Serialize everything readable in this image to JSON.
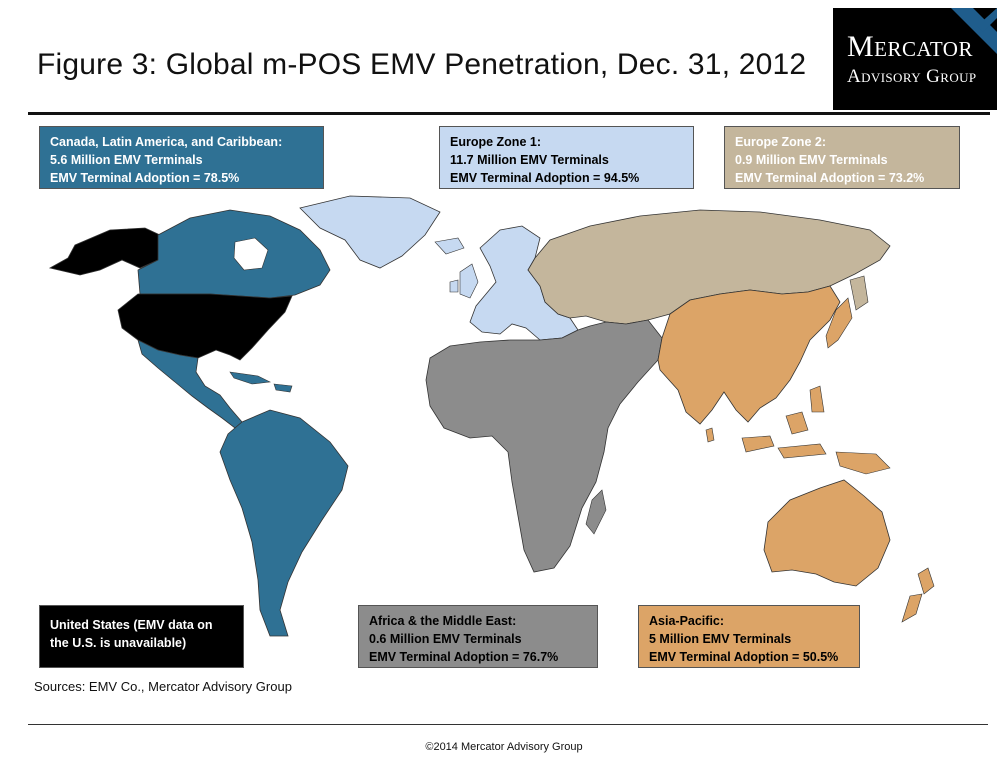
{
  "title": "Figure 3: Global m-POS EMV Penetration, Dec. 31, 2012",
  "logo": {
    "line1": "Mercator",
    "line2": "Advisory Group"
  },
  "colors": {
    "canada_latam": "#2f7194",
    "europe1": "#c6d9f1",
    "europe2": "#c4b69c",
    "africa_me": "#8c8c8c",
    "asia_pacific": "#dca467",
    "us": "#000000"
  },
  "regions": {
    "canada_latam": {
      "line1": "Canada, Latin America, and Caribbean:",
      "line2": " 5.6 Million EMV Terminals",
      "line3": "EMV Terminal Adoption = 78.5%"
    },
    "europe1": {
      "line1": "Europe Zone 1:",
      "line2": "11.7  Million EMV Terminals",
      "line3": "EMV Terminal Adoption = 94.5%"
    },
    "europe2": {
      "line1": "Europe Zone 2:",
      "line2": "0.9 Million EMV Terminals",
      "line3": "EMV Terminal Adoption = 73.2%"
    },
    "us": {
      "line1": "United States (EMV data on",
      "line2": "the U.S. is unavailable)"
    },
    "africa_me": {
      "line1": "Africa & the Middle East:",
      "line2": "0.6 Million EMV Terminals",
      "line3": "EMV Terminal Adoption = 76.7%"
    },
    "asia_pacific": {
      "line1": "Asia-Pacific:",
      "line2": "5 Million EMV Terminals",
      "line3": "EMV Terminal Adoption = 50.5%"
    }
  },
  "sources": "Sources:  EMV  Co., Mercator Advisory Group",
  "footer": "©2014 Mercator Advisory Group"
}
